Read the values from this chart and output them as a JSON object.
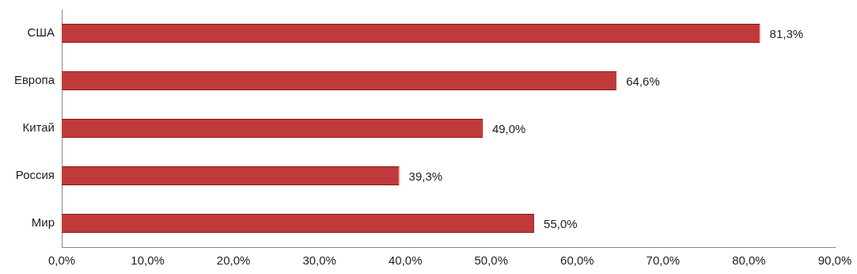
{
  "chart_data": {
    "type": "bar",
    "orientation": "horizontal",
    "categories": [
      "США",
      "Европа",
      "Китай",
      "Россия",
      "Мир"
    ],
    "values": [
      81.3,
      64.6,
      49.0,
      39.3,
      55.0
    ],
    "color": "#c0393b",
    "value_labels": [
      "81,3%",
      "64,6%",
      "49,0%",
      "39,3%",
      "55,0%"
    ],
    "xlim": [
      0,
      90
    ],
    "xticks": [
      {
        "value": 0,
        "label": "0,0%"
      },
      {
        "value": 10,
        "label": "10,0%"
      },
      {
        "value": 20,
        "label": "20,0%"
      },
      {
        "value": 30,
        "label": "30,0%"
      },
      {
        "value": 40,
        "label": "40,0%"
      },
      {
        "value": 50,
        "label": "50,0%"
      },
      {
        "value": 60,
        "label": "60,0%"
      },
      {
        "value": 70,
        "label": "70,0%"
      },
      {
        "value": 80,
        "label": "80,0%"
      },
      {
        "value": 90,
        "label": "90,0%"
      }
    ],
    "grid": false,
    "legend": false
  }
}
